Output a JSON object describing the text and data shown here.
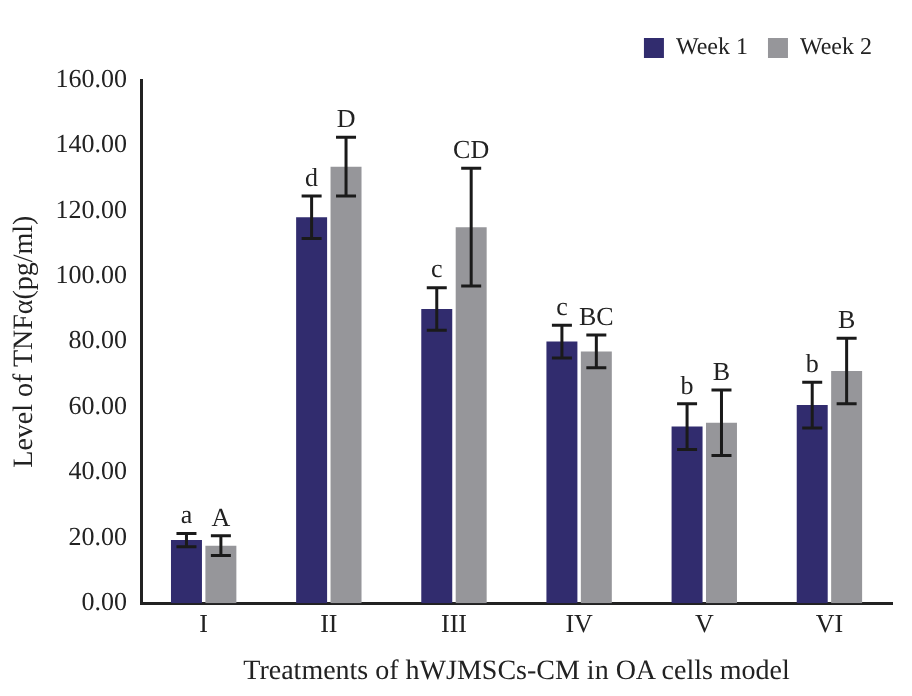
{
  "chart_data": {
    "type": "bar",
    "xlabel": "Treatments of hWJMSCs-CM in OA cells model",
    "ylabel": "Level of TNFα(pg/ml)",
    "categories": [
      "I",
      "II",
      "III",
      "IV",
      "V",
      "VI"
    ],
    "series": [
      {
        "name": "Week 1",
        "color": "#312c6e",
        "values": [
          19.3,
          118,
          90,
          80,
          54,
          60.6
        ],
        "errors": [
          2,
          6.5,
          6.5,
          5,
          7,
          7
        ],
        "value_labels": [
          "a",
          "d",
          "c",
          "c",
          "b",
          "b"
        ]
      },
      {
        "name": "Week 2",
        "color": "#96969a",
        "values": [
          17.6,
          133.5,
          115,
          77,
          55.2,
          71
        ],
        "errors": [
          3,
          9,
          18,
          5,
          10,
          10
        ],
        "value_labels": [
          "A",
          "D",
          "CD",
          "BC",
          "B",
          "B"
        ]
      }
    ],
    "ylim": [
      0,
      160
    ],
    "yticks": [
      {
        "value": 0,
        "label": "0.00"
      },
      {
        "value": 20,
        "label": "20.00"
      },
      {
        "value": 40,
        "label": "40.00"
      },
      {
        "value": 60,
        "label": "60.00"
      },
      {
        "value": 80,
        "label": "80.00"
      },
      {
        "value": 100,
        "label": "100.00"
      },
      {
        "value": 120,
        "label": "120.00"
      },
      {
        "value": 140,
        "label": "140.00"
      },
      {
        "value": 160,
        "label": "160.00"
      }
    ],
    "grid": false,
    "legend": "top right"
  }
}
